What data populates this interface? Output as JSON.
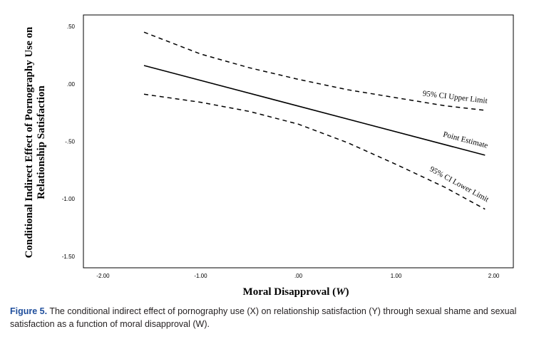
{
  "chart_data": {
    "type": "line",
    "xlabel": "Moral Disapproval",
    "xlabel_var": "W",
    "ylabel_line1": "Conditional Indirect Effect of Pornography Use on",
    "ylabel_line2": "Relationship Satisfaction",
    "xlim": [
      -2.2,
      2.2
    ],
    "ylim": [
      -1.6,
      0.6
    ],
    "x_ticks": [
      -2.0,
      -1.0,
      0.0,
      1.0,
      2.0
    ],
    "x_tick_labels": [
      "-2.00",
      "-1.00",
      ".00",
      "1.00",
      "2.00"
    ],
    "y_ticks": [
      0.5,
      0.0,
      -0.5,
      -1.0,
      -1.5
    ],
    "y_tick_labels": [
      ".50",
      ".00",
      "-.50",
      "-1.00",
      "-1.50"
    ],
    "grid": false,
    "series": [
      {
        "name": "Point Estimate",
        "style": "solid",
        "x": [
          -1.58,
          1.91
        ],
        "y": [
          0.16,
          -0.62
        ]
      },
      {
        "name": "95% CI Upper Limit",
        "style": "dashed",
        "x": [
          -1.58,
          -1.0,
          -0.5,
          0.0,
          0.5,
          1.0,
          1.5,
          1.91
        ],
        "y": [
          0.45,
          0.26,
          0.14,
          0.04,
          -0.05,
          -0.12,
          -0.19,
          -0.23
        ]
      },
      {
        "name": "95% CI Lower Limit",
        "style": "dashed",
        "x": [
          -1.58,
          -1.0,
          -0.5,
          0.0,
          0.5,
          1.0,
          1.5,
          1.91
        ],
        "y": [
          -0.09,
          -0.16,
          -0.24,
          -0.35,
          -0.51,
          -0.7,
          -0.9,
          -1.09
        ]
      }
    ]
  },
  "caption": {
    "label": "Figure 5.",
    "text": "The conditional indirect effect of pornography use (X) on relationship satisfaction (Y) through sexual shame and sexual satisfaction as a function of moral disapproval (W)."
  }
}
